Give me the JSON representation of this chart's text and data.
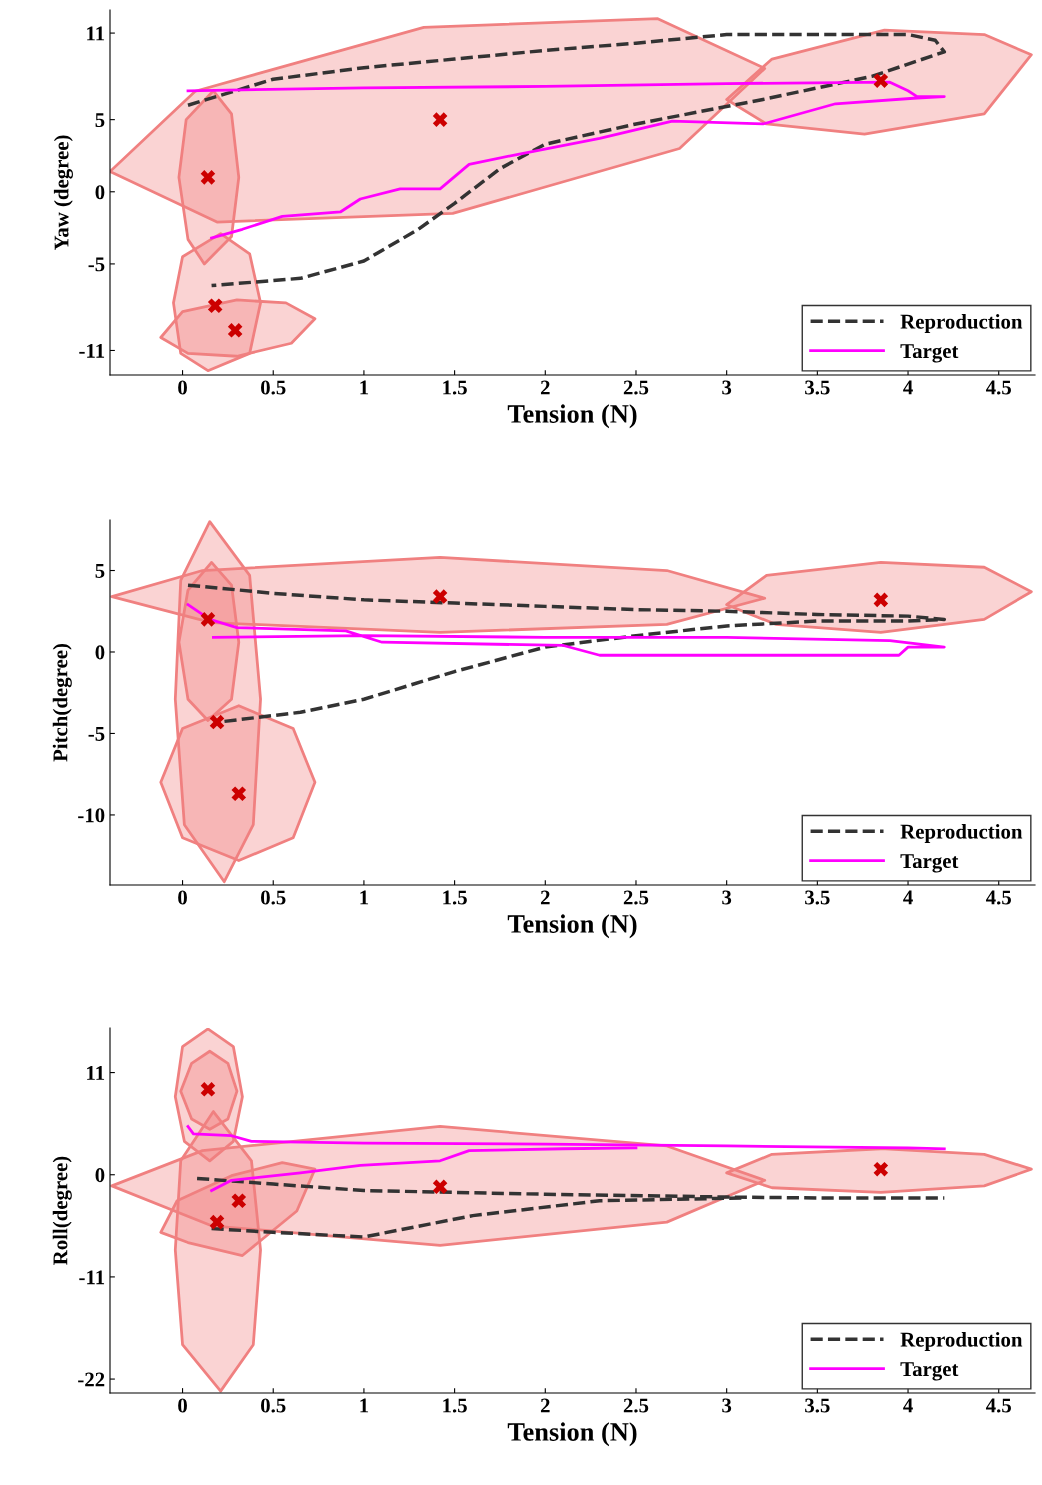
{
  "chart_data": [
    {
      "type": "line",
      "xlabel": "Tension (N)",
      "ylabel": "Yaw (degree)",
      "xlim": [
        -0.4,
        4.7
      ],
      "ylim": [
        -12.7,
        12.6
      ],
      "xticks": [
        0,
        0.5,
        1,
        1.5,
        2,
        2.5,
        3,
        3.5,
        4,
        4.5
      ],
      "yticks": [
        -11,
        -5,
        0,
        5,
        11
      ],
      "legend": "bottom right",
      "grid": false,
      "series": [
        {
          "type": "area",
          "color": "#f08080",
          "x": [
            3.21,
            2.74,
            1.49,
            0.19,
            -0.4,
            0.07,
            1.33,
            2.62
          ],
          "values": [
            8.55,
            3.0,
            -1.5,
            -2.1,
            1.4,
            6.97,
            11.4,
            12.0
          ]
        },
        {
          "type": "area",
          "color": "#f08080",
          "x": [
            0.31,
            0.27,
            0.17,
            0.02,
            -0.02,
            0.03,
            0.12,
            0.27
          ],
          "values": [
            1.0,
            5.4,
            7.0,
            5.0,
            1.0,
            -3.3,
            -5.0,
            -3.1
          ]
        },
        {
          "type": "area",
          "color": "#f08080",
          "x": [
            0.43,
            0.37,
            0.21,
            0.0,
            -0.05,
            -0.01,
            0.14,
            0.37
          ],
          "values": [
            -7.7,
            -4.3,
            -2.9,
            -4.5,
            -7.7,
            -11.2,
            -12.4,
            -11.2
          ]
        },
        {
          "type": "area",
          "color": "#f08080",
          "x": [
            0.73,
            0.57,
            0.3,
            0.0,
            -0.12,
            0.03,
            0.3,
            0.6
          ],
          "values": [
            -8.8,
            -7.7,
            -7.5,
            -8.3,
            -10.1,
            -11.2,
            -11.4,
            -10.5
          ]
        },
        {
          "type": "area",
          "color": "#f08080",
          "x": [
            4.68,
            4.42,
            3.87,
            3.25,
            3.0,
            3.22,
            3.76,
            4.42
          ],
          "values": [
            9.5,
            10.9,
            11.2,
            9.2,
            6.4,
            4.7,
            4.0,
            5.4
          ]
        },
        {
          "name": "Reproduction",
          "line_style": "dashed",
          "color": "#333333",
          "x": [
            0.03,
            0.5,
            1.0,
            1.5,
            2.0,
            2.5,
            3.0,
            3.5,
            4.0,
            4.15,
            4.2,
            3.8,
            3.2,
            2.5,
            2.0,
            1.75,
            1.5,
            1.3,
            1.0,
            0.65,
            0.16
          ],
          "values": [
            6.0,
            7.8,
            8.6,
            9.2,
            9.8,
            10.3,
            10.9,
            10.9,
            10.9,
            10.5,
            9.7,
            8.0,
            6.4,
            4.7,
            3.3,
            1.6,
            -0.8,
            -2.6,
            -4.8,
            -6.0,
            -6.5
          ]
        },
        {
          "name": "Target",
          "line_style": "solid",
          "color": "#ff00ff",
          "x": [
            0.03,
            1.0,
            2.0,
            3.0,
            3.9,
            4.0,
            4.05,
            4.2,
            4.05,
            3.6,
            3.2,
            2.7,
            2.3,
            1.85,
            1.58,
            1.42,
            1.2,
            0.98,
            0.87,
            0.55,
            0.33,
            0.16
          ],
          "values": [
            7.0,
            7.2,
            7.3,
            7.5,
            7.6,
            7.0,
            6.6,
            6.6,
            6.5,
            6.1,
            4.7,
            4.9,
            3.7,
            2.6,
            1.9,
            0.2,
            0.2,
            -0.5,
            -1.4,
            -1.7,
            -2.6,
            -3.2
          ]
        },
        {
          "type": "scatter",
          "marker": "cross",
          "color": "#cc0000",
          "x": [
            0.14,
            1.42,
            3.85,
            0.18,
            0.29
          ],
          "values": [
            1.0,
            5.0,
            7.7,
            -7.9,
            -9.6
          ]
        }
      ]
    },
    {
      "type": "line",
      "xlabel": "Tension (N)",
      "ylabel": "Pitch(degree)",
      "xlim": [
        -0.4,
        4.7
      ],
      "ylim": [
        -14.3,
        8.1
      ],
      "xticks": [
        0,
        0.5,
        1,
        1.5,
        2,
        2.5,
        3,
        3.5,
        4,
        4.5
      ],
      "yticks": [
        -10,
        -5,
        0,
        5
      ],
      "legend": "bottom right",
      "grid": false,
      "series": [
        {
          "type": "area",
          "color": "#f08080",
          "x": [
            3.21,
            2.67,
            1.42,
            0.11,
            -0.39,
            0.16,
            1.42,
            2.67
          ],
          "values": [
            3.3,
            5.0,
            5.8,
            5.0,
            3.4,
            1.8,
            1.2,
            1.7
          ]
        },
        {
          "type": "area",
          "color": "#f08080",
          "x": [
            4.68,
            4.42,
            3.85,
            3.22,
            3.0,
            3.27,
            3.85,
            4.42
          ],
          "values": [
            3.7,
            5.2,
            5.5,
            4.7,
            2.9,
            1.7,
            1.2,
            2.0
          ]
        },
        {
          "type": "area",
          "color": "#f08080",
          "x": [
            0.43,
            0.37,
            0.15,
            -0.01,
            -0.04,
            0.01,
            0.23,
            0.39
          ],
          "values": [
            -2.9,
            4.7,
            8.0,
            4.4,
            -2.9,
            -10.6,
            -14.1,
            -10.6
          ]
        },
        {
          "type": "area",
          "color": "#f08080",
          "x": [
            0.31,
            0.27,
            0.16,
            0.03,
            -0.02,
            0.03,
            0.14,
            0.27
          ],
          "values": [
            0.6,
            4.1,
            5.5,
            3.8,
            0.6,
            -2.9,
            -4.2,
            -2.9
          ]
        },
        {
          "type": "area",
          "color": "#f08080",
          "x": [
            0.73,
            0.61,
            0.31,
            0.0,
            -0.12,
            0.0,
            0.31,
            0.61
          ],
          "values": [
            -8.0,
            -4.7,
            -3.3,
            -4.7,
            -8.0,
            -11.4,
            -12.8,
            -11.4
          ]
        },
        {
          "name": "Reproduction",
          "line_style": "dashed",
          "color": "#333333",
          "x": [
            0.03,
            0.5,
            1.0,
            1.5,
            2.0,
            2.5,
            3.0,
            3.5,
            4.0,
            4.2,
            4.0,
            3.5,
            3.0,
            2.5,
            2.0,
            1.5,
            1.0,
            0.65,
            0.2
          ],
          "values": [
            4.1,
            3.6,
            3.2,
            3.0,
            2.8,
            2.6,
            2.5,
            2.3,
            2.2,
            2.0,
            1.9,
            1.9,
            1.6,
            1.0,
            0.3,
            -1.2,
            -2.9,
            -3.7,
            -4.3
          ]
        },
        {
          "name": "Target",
          "line_style": "solid",
          "color": "#ff00ff",
          "x": [
            0.03,
            0.15,
            0.3,
            0.9,
            1.1,
            2.1,
            2.3,
            3.95,
            4.0,
            4.2,
            3.9,
            3.0,
            2.0,
            1.0,
            0.17
          ],
          "values": [
            2.9,
            2.0,
            1.5,
            1.3,
            0.6,
            0.4,
            -0.2,
            -0.2,
            0.3,
            0.3,
            0.7,
            0.9,
            0.9,
            1.0,
            0.9
          ]
        },
        {
          "type": "scatter",
          "marker": "cross",
          "color": "#cc0000",
          "x": [
            0.14,
            1.42,
            3.85,
            0.19,
            0.31
          ],
          "values": [
            2.0,
            3.4,
            3.2,
            -4.3,
            -8.7
          ]
        }
      ]
    },
    {
      "type": "line",
      "xlabel": "Tension (N)",
      "ylabel": "Roll(degree)",
      "xlim": [
        -0.4,
        4.7
      ],
      "ylim": [
        -23.5,
        15.8
      ],
      "xticks": [
        0,
        0.5,
        1,
        1.5,
        2,
        2.5,
        3,
        3.5,
        4,
        4.5
      ],
      "yticks": [
        -22,
        -11,
        0,
        11
      ],
      "legend": "bottom right",
      "grid": false,
      "series": [
        {
          "type": "area",
          "color": "#f08080",
          "x": [
            3.21,
            2.67,
            1.42,
            0.11,
            -0.39,
            0.16,
            1.42,
            2.67
          ],
          "values": [
            -0.6,
            3.1,
            5.2,
            2.6,
            -1.2,
            -5.5,
            -7.6,
            -5.1
          ]
        },
        {
          "type": "area",
          "color": "#f08080",
          "x": [
            4.68,
            4.42,
            3.85,
            3.25,
            3.0,
            3.25,
            3.85,
            4.42
          ],
          "values": [
            0.6,
            2.2,
            2.8,
            2.2,
            0.2,
            -1.4,
            -1.9,
            -1.2
          ]
        },
        {
          "type": "area",
          "color": "#f08080",
          "x": [
            0.33,
            0.28,
            0.14,
            0.0,
            -0.04,
            0.01,
            0.15,
            0.28
          ],
          "values": [
            8.4,
            13.8,
            15.7,
            13.8,
            8.4,
            3.6,
            1.5,
            3.6
          ]
        },
        {
          "type": "area",
          "color": "#f08080",
          "x": [
            0.3,
            0.25,
            0.15,
            0.05,
            -0.01,
            0.05,
            0.15,
            0.25
          ],
          "values": [
            9.0,
            12.0,
            13.3,
            12.0,
            9.0,
            6.0,
            4.9,
            6.0
          ]
        },
        {
          "type": "area",
          "color": "#f08080",
          "x": [
            0.43,
            0.38,
            0.17,
            -0.01,
            -0.04,
            0.0,
            0.21,
            0.39
          ],
          "values": [
            -8.1,
            1.5,
            6.8,
            1.5,
            -8.1,
            -18.3,
            -23.3,
            -18.3
          ]
        },
        {
          "type": "area",
          "color": "#f08080",
          "x": [
            0.73,
            0.55,
            0.27,
            -0.03,
            -0.12,
            0.03,
            0.33,
            0.63
          ],
          "values": [
            0.6,
            1.3,
            -0.1,
            -2.8,
            -6.2,
            -7.3,
            -8.7,
            -3.9
          ]
        },
        {
          "name": "Reproduction",
          "line_style": "dashed",
          "color": "#333333",
          "x": [
            0.08,
            0.5,
            1.0,
            2.0,
            3.0,
            3.5,
            4.2
          ],
          "values": [
            -0.4,
            -1.0,
            -1.7,
            -2.1,
            -2.4,
            -2.5,
            -2.5
          ]
        },
        {
          "line_style": "dashed",
          "color": "#333333",
          "x": [
            0.16,
            0.5,
            1.0,
            1.6,
            2.3,
            3.1
          ],
          "values": [
            -5.8,
            -6.2,
            -6.7,
            -4.4,
            -2.8,
            -2.5
          ]
        },
        {
          "name": "Target",
          "line_style": "solid",
          "color": "#ff00ff",
          "x": [
            0.03,
            0.06,
            0.27,
            0.38,
            1.0,
            2.0,
            3.0,
            4.0,
            4.2
          ],
          "values": [
            5.2,
            4.4,
            4.2,
            3.6,
            3.4,
            3.3,
            3.1,
            2.9,
            2.8
          ]
        },
        {
          "line_style": "solid",
          "color": "#ff00ff",
          "x": [
            0.16,
            0.27,
            0.65,
            0.98,
            1.42,
            1.58,
            2.1,
            2.5
          ],
          "values": [
            -1.7,
            -0.6,
            0.2,
            1.0,
            1.5,
            2.6,
            2.8,
            2.9
          ]
        },
        {
          "type": "scatter",
          "marker": "cross",
          "color": "#cc0000",
          "x": [
            0.14,
            1.42,
            3.85,
            0.31,
            0.19
          ],
          "values": [
            9.2,
            -1.3,
            0.6,
            -2.8,
            -5.1
          ]
        }
      ]
    }
  ]
}
